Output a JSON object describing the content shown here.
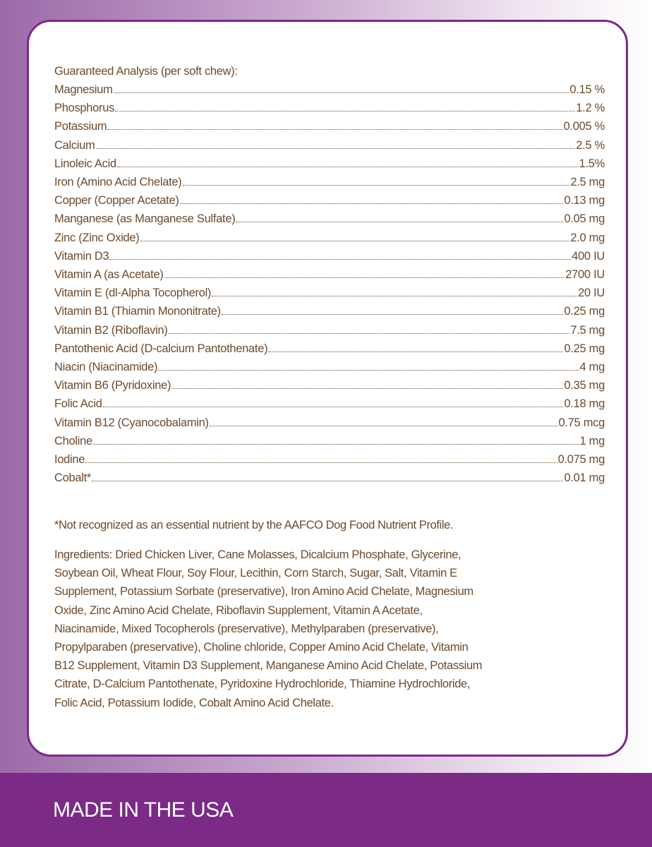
{
  "analysis": {
    "heading": "Guaranteed Analysis (per soft chew):",
    "rows": [
      {
        "name": "Magnesium",
        "value": "0.15 %"
      },
      {
        "name": "Phosphorus",
        "value": "1.2 %"
      },
      {
        "name": "Potassium",
        "value": "0.005 %"
      },
      {
        "name": "Calcium",
        "value": "2.5 %"
      },
      {
        "name": "Linoleic Acid",
        "value": "1.5%"
      },
      {
        "name": "Iron (Amino Acid Chelate)",
        "value": "2.5 mg"
      },
      {
        "name": "Copper (Copper Acetate)",
        "value": "0.13 mg"
      },
      {
        "name": "Manganese (as Manganese Sulfate)",
        "value": "0.05 mg"
      },
      {
        "name": "Zinc (Zinc Oxide)",
        "value": "2.0 mg"
      },
      {
        "name": "Vitamin D3",
        "value": "400  IU"
      },
      {
        "name": "Vitamin A  (as Acetate)",
        "value": "2700  IU"
      },
      {
        "name": "Vitamin E (dl-Alpha Tocopherol)",
        "value": "20 IU"
      },
      {
        "name": "Vitamin B1 (Thiamin Mononitrate)",
        "value": "0.25 mg"
      },
      {
        "name": "Vitamin B2  (Riboflavin)",
        "value": "7.5 mg"
      },
      {
        "name": "Pantothenic Acid (D-calcium Pantothenate)",
        "value": "0.25 mg"
      },
      {
        "name": "Niacin (Niacinamide)",
        "value": "4 mg"
      },
      {
        "name": "Vitamin B6 (Pyridoxine)",
        "value": "0.35 mg"
      },
      {
        "name": "Folic Acid",
        "value": "0.18 mg"
      },
      {
        "name": "Vitamin B12 (Cyanocobalamin)",
        "value": "0.75 mcg"
      },
      {
        "name": "Choline",
        "value": "1 mg"
      },
      {
        "name": "Iodine",
        "value": "0.075 mg"
      },
      {
        "name": "Cobalt*",
        "value": "0.01 mg"
      }
    ]
  },
  "footnote": "*Not recognized as an essential nutrient by the AAFCO Dog Food Nutrient Profile.",
  "ingredients": [
    "Ingredients: Dried Chicken Liver, Cane Molasses, Dicalcium Phosphate, Glycerine,",
    "Soybean Oil, Wheat Flour, Soy Flour, Lecithin, Corn Starch, Sugar, Salt, Vitamin E",
    "Supplement, Potassium Sorbate (preservative), Iron Amino Acid Chelate, Magnesium",
    "Oxide, Zinc Amino Acid Chelate, Riboflavin Supplement, Vitamin A Acetate,",
    "Niacinamide, Mixed Tocopherols (preservative), Methylparaben (preservative),",
    "Propylparaben (preservative), Choline chloride, Copper Amino Acid Chelate, Vitamin",
    "B12 Supplement, Vitamin D3 Supplement, Manganese Amino Acid Chelate, Potassium",
    "Citrate, D-Calcium Pantothenate, Pyridoxine Hydrochloride, Thiamine Hydrochloride,",
    "Folic Acid, Potassium Iodide, Cobalt Amino Acid Chelate."
  ],
  "footer": {
    "text": "MADE IN THE USA"
  },
  "colors": {
    "text": "#6b4a2e",
    "accent": "#7b2a86",
    "card_border": "#7b2a88"
  }
}
